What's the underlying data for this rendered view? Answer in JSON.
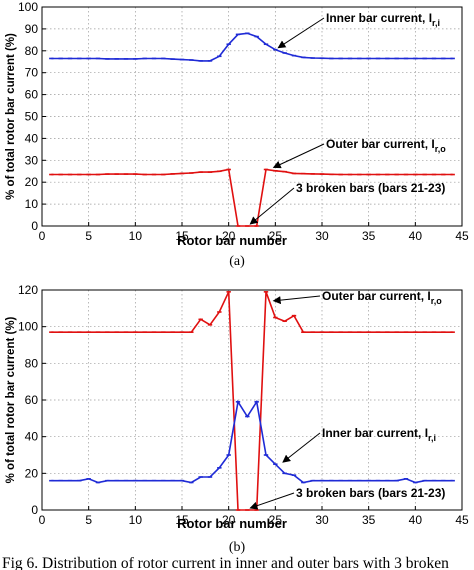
{
  "caption": "Fig 6. Distribution of rotor current in inner and outer bars with 3 broken",
  "chart_data": [
    {
      "type": "line",
      "sublabel": "(a)",
      "xlabel": "Rotor bar number",
      "ylabel": "% of total rotor bar current (%)",
      "xlim": [
        0,
        45
      ],
      "ylim": [
        0,
        100
      ],
      "xticks": [
        0,
        5,
        10,
        15,
        20,
        25,
        30,
        35,
        40,
        45
      ],
      "yticks": [
        0,
        10,
        20,
        30,
        40,
        50,
        60,
        70,
        80,
        90,
        100
      ],
      "grid": true,
      "series": [
        {
          "name": "Inner bar current",
          "color": "#1f2bd6",
          "x": [
            1,
            2,
            3,
            4,
            5,
            6,
            7,
            8,
            9,
            10,
            11,
            12,
            13,
            14,
            15,
            16,
            17,
            18,
            19,
            20,
            21,
            22,
            23,
            24,
            25,
            26,
            27,
            28,
            29,
            30,
            31,
            32,
            33,
            34,
            35,
            36,
            37,
            38,
            39,
            40,
            41,
            42,
            43,
            44
          ],
          "y": [
            76.5,
            76.5,
            76.5,
            76.5,
            76.5,
            76.5,
            76.3,
            76.3,
            76.3,
            76.3,
            76.5,
            76.5,
            76.5,
            76.2,
            76,
            75.8,
            75.4,
            75.4,
            77.5,
            83,
            87.5,
            88,
            86.5,
            83,
            80.5,
            79,
            77.8,
            77,
            76.7,
            76.6,
            76.5,
            76.5,
            76.5,
            76.5,
            76.5,
            76.5,
            76.5,
            76.5,
            76.5,
            76.5,
            76.5,
            76.5,
            76.5,
            76.5
          ]
        },
        {
          "name": "Outer bar current",
          "color": "#e01010",
          "x": [
            1,
            2,
            3,
            4,
            5,
            6,
            7,
            8,
            9,
            10,
            11,
            12,
            13,
            14,
            15,
            16,
            17,
            18,
            19,
            20,
            21,
            22,
            23,
            24,
            25,
            26,
            27,
            28,
            29,
            30,
            31,
            32,
            33,
            34,
            35,
            36,
            37,
            38,
            39,
            40,
            41,
            42,
            43,
            44
          ],
          "y": [
            23.5,
            23.5,
            23.5,
            23.5,
            23.5,
            23.5,
            23.7,
            23.7,
            23.7,
            23.7,
            23.5,
            23.5,
            23.5,
            23.8,
            24,
            24.2,
            24.6,
            24.6,
            25,
            25.8,
            0,
            0,
            0,
            25.8,
            25.2,
            24.8,
            24,
            23.9,
            23.8,
            23.7,
            23.6,
            23.5,
            23.5,
            23.5,
            23.5,
            23.5,
            23.5,
            23.5,
            23.5,
            23.5,
            23.5,
            23.5,
            23.5,
            23.5
          ]
        }
      ],
      "annotations": [
        {
          "text": "Inner bar current, I",
          "sub": "r,i",
          "point": [
            25,
            80.5
          ]
        },
        {
          "text": "Outer bar current, I",
          "sub": "r,o",
          "point": [
            24.5,
            25.8
          ]
        },
        {
          "text": "3 broken bars (bars 21-23)",
          "sub": "",
          "point": [
            22,
            0
          ]
        }
      ]
    },
    {
      "type": "line",
      "sublabel": "(b)",
      "xlabel": "Rotor bar number",
      "ylabel": "% of total rotor bar current (%)",
      "xlim": [
        0,
        45
      ],
      "ylim": [
        0,
        120
      ],
      "xticks": [
        0,
        5,
        10,
        15,
        20,
        25,
        30,
        35,
        40,
        45
      ],
      "yticks": [
        0,
        20,
        40,
        60,
        80,
        100,
        120
      ],
      "grid": true,
      "series": [
        {
          "name": "Outer bar current",
          "color": "#e01010",
          "x": [
            1,
            2,
            3,
            4,
            5,
            6,
            7,
            8,
            9,
            10,
            11,
            12,
            13,
            14,
            15,
            16,
            17,
            18,
            19,
            20,
            21,
            22,
            23,
            24,
            25,
            26,
            27,
            28,
            29,
            30,
            31,
            32,
            33,
            34,
            35,
            36,
            37,
            38,
            39,
            40,
            41,
            42,
            43,
            44
          ],
          "y": [
            97,
            97,
            97,
            97,
            97,
            97,
            97,
            97,
            97,
            97,
            97,
            97,
            97,
            97,
            97,
            97,
            104,
            101,
            108,
            119,
            0,
            0,
            0,
            119,
            105,
            103,
            106,
            97,
            97,
            97,
            97,
            97,
            97,
            97,
            97,
            97,
            97,
            97,
            97,
            97,
            97,
            97,
            97,
            97
          ]
        },
        {
          "name": "Inner bar current",
          "color": "#1f2bd6",
          "x": [
            1,
            2,
            3,
            4,
            5,
            6,
            7,
            8,
            9,
            10,
            11,
            12,
            13,
            14,
            15,
            16,
            17,
            18,
            19,
            20,
            21,
            22,
            23,
            24,
            25,
            26,
            27,
            28,
            29,
            30,
            31,
            32,
            33,
            34,
            35,
            36,
            37,
            38,
            39,
            40,
            41,
            42,
            43,
            44
          ],
          "y": [
            16,
            16,
            16,
            16,
            17,
            15,
            16,
            16,
            16,
            16,
            16,
            16,
            16,
            16,
            16,
            15,
            18,
            18,
            23,
            30,
            59,
            51,
            59,
            30,
            25,
            20,
            19,
            15,
            16,
            16,
            16,
            16,
            16,
            16,
            16,
            16,
            16,
            16,
            17,
            15,
            16,
            16,
            16,
            16
          ]
        }
      ],
      "annotations": [
        {
          "text": "Outer bar current, I",
          "sub": "r,o",
          "point": [
            24.5,
            113
          ]
        },
        {
          "text": "Inner bar current, I",
          "sub": "r,i",
          "point": [
            25.5,
            25
          ]
        },
        {
          "text": "3 broken bars (bars 21-23)",
          "sub": "",
          "point": [
            22,
            0
          ]
        }
      ]
    }
  ]
}
